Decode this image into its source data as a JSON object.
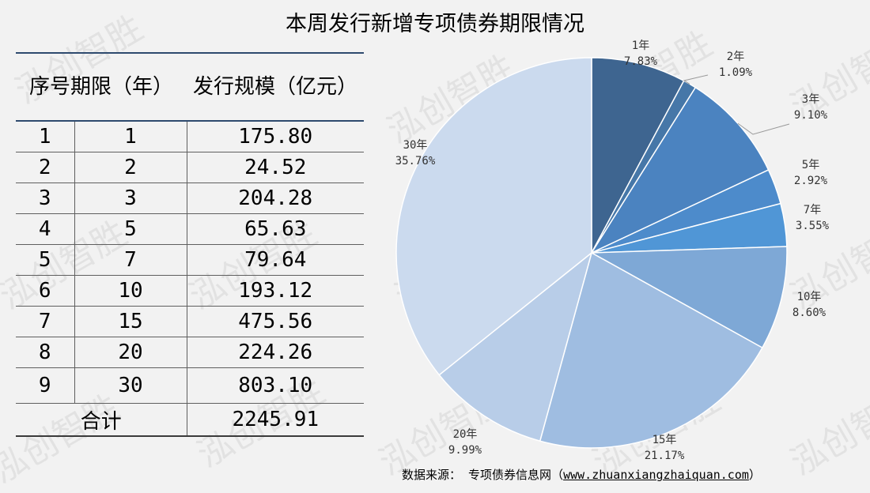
{
  "title": "本周发行新增专项债券期限情况",
  "watermark": "泓创智胜",
  "table": {
    "headers": [
      "序号",
      "期限（年）",
      "发行规模（亿元）"
    ],
    "rows": [
      [
        "1",
        "1",
        "175.80"
      ],
      [
        "2",
        "2",
        "24.52"
      ],
      [
        "3",
        "3",
        "204.28"
      ],
      [
        "4",
        "5",
        "65.63"
      ],
      [
        "5",
        "7",
        "79.64"
      ],
      [
        "6",
        "10",
        "193.12"
      ],
      [
        "7",
        "15",
        "475.56"
      ],
      [
        "8",
        "20",
        "224.26"
      ],
      [
        "9",
        "30",
        "803.10"
      ]
    ],
    "total_label": "合计",
    "total_value": "2245.91"
  },
  "chart_data": {
    "type": "pie",
    "categories": [
      "1年",
      "2年",
      "3年",
      "5年",
      "7年",
      "10年",
      "15年",
      "20年",
      "30年"
    ],
    "values": [
      175.8,
      24.52,
      204.28,
      65.63,
      79.64,
      193.12,
      475.56,
      224.26,
      803.1
    ],
    "percent_labels": [
      "7.83%",
      "1.09%",
      "9.10%",
      "2.92%",
      "3.55%",
      "8.60%",
      "21.17%",
      "9.99%",
      "35.76%"
    ],
    "colors": [
      "#3e6590",
      "#4677a8",
      "#4b83c0",
      "#4d8bcb",
      "#5096d6",
      "#7ea8d6",
      "#9fbde1",
      "#b8cde8",
      "#cbdaee"
    ],
    "start_angle_deg": 0,
    "direction": "clockwise"
  },
  "source": {
    "label": "数据来源：",
    "name": "专项债券信息网",
    "url": "www.zhuanxiangzhaiquan.com"
  }
}
